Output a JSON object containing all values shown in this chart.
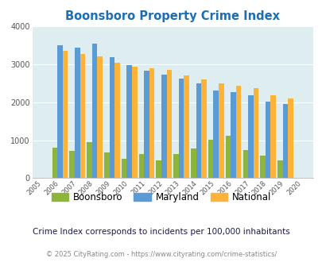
{
  "title": "Boonsboro Property Crime Index",
  "subtitle": "Crime Index corresponds to incidents per 100,000 inhabitants",
  "footer": "© 2025 CityRating.com - https://www.cityrating.com/crime-statistics/",
  "years": [
    2005,
    2006,
    2007,
    2008,
    2009,
    2010,
    2011,
    2012,
    2013,
    2014,
    2015,
    2016,
    2017,
    2018,
    2019,
    2020
  ],
  "boonsboro": [
    0,
    800,
    720,
    950,
    670,
    520,
    630,
    460,
    640,
    780,
    1010,
    1120,
    750,
    600,
    460,
    0
  ],
  "maryland": [
    0,
    3490,
    3430,
    3530,
    3180,
    2970,
    2840,
    2730,
    2630,
    2490,
    2300,
    2270,
    2180,
    2020,
    1960,
    0
  ],
  "national": [
    0,
    3350,
    3270,
    3210,
    3030,
    2940,
    2890,
    2860,
    2700,
    2590,
    2490,
    2440,
    2380,
    2180,
    2100,
    0
  ],
  "boonsboro_color": "#8db53c",
  "maryland_color": "#5b9bd5",
  "national_color": "#fdb23a",
  "bg_color": "#deedf0",
  "ylim": [
    0,
    4000
  ],
  "title_color": "#1e6eb5",
  "subtitle_color": "#1a1a4a",
  "footer_color": "#888888",
  "legend_labels": [
    "Boonsboro",
    "Maryland",
    "National"
  ]
}
